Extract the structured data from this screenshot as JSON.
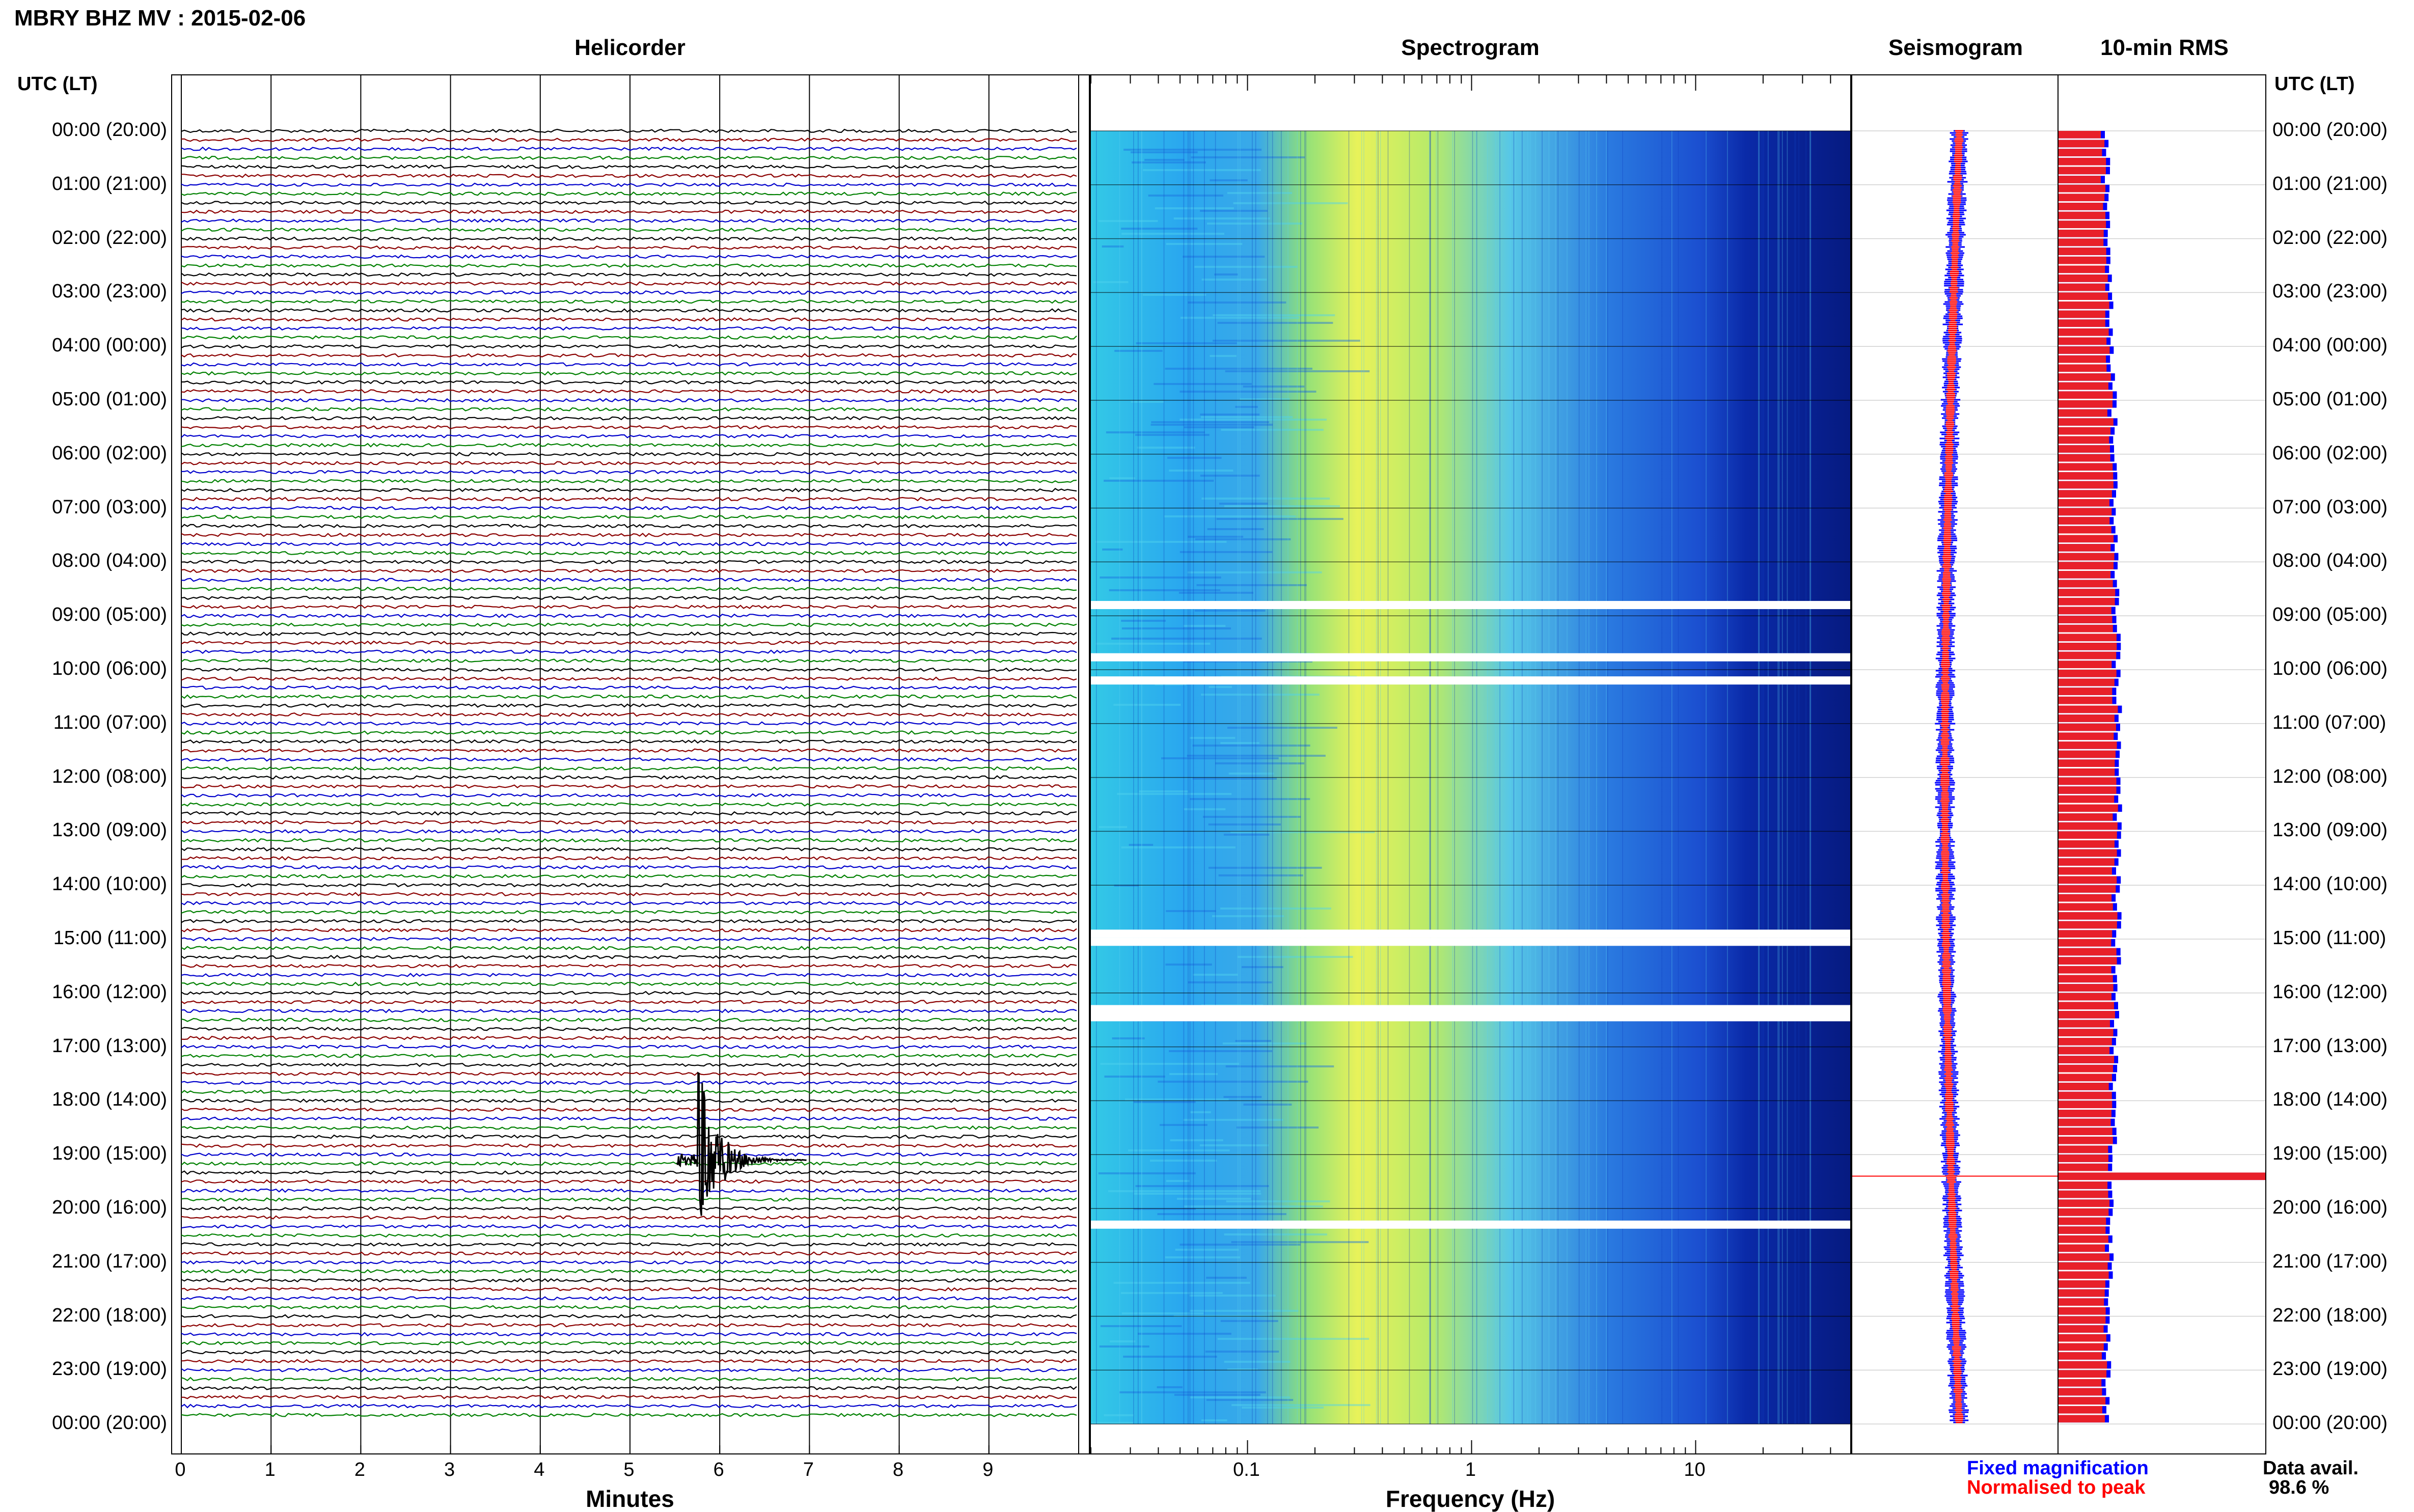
{
  "header": {
    "title": "MBRY BHZ MV : 2015-02-06",
    "utc_label": "UTC (LT)"
  },
  "panels": {
    "helicorder": "Helicorder",
    "spectrogram": "Spectrogram",
    "seismogram": "Seismogram",
    "rms": "10-min RMS"
  },
  "axes": {
    "helicorder_x_title": "Minutes",
    "spectrogram_x_title": "Frequency (Hz)"
  },
  "legend": {
    "fixed": "Fixed magnification",
    "normalised": "Normalised to peak",
    "data_avail_label": "Data avail.",
    "data_avail_value": "98.6 %"
  },
  "colors": {
    "trace_cycle": [
      "#000000",
      "#8b0000",
      "#0000cc",
      "#008000"
    ],
    "fixed": "#0000ff",
    "normalised": "#ff0000",
    "rms_bar": "#e8202a"
  },
  "chart_data": [
    {
      "type": "line",
      "name": "helicorder",
      "x_range": [
        0,
        10
      ],
      "x_ticks": [
        0,
        1,
        2,
        3,
        4,
        5,
        6,
        7,
        8,
        9
      ],
      "x_tick_labels": [
        "0",
        "1",
        "2",
        "3",
        "4",
        "5",
        "6",
        "7",
        "8",
        "9"
      ],
      "lines_per_hour": 6,
      "hours": 24,
      "event": {
        "hour": 19.1,
        "minute": 5.75
      }
    },
    {
      "type": "heatmap",
      "name": "spectrogram",
      "scale": "log",
      "x_range": [
        0.02,
        50
      ],
      "x_tick_labels": [
        "0.1",
        "1",
        "10"
      ],
      "x_tick_values": [
        0.1,
        1,
        10
      ],
      "gaps_utc_hour": [
        8.8,
        9.77,
        10.2,
        14.9,
        15.05,
        16.3,
        16.45,
        20.3
      ]
    },
    {
      "type": "line",
      "name": "seismogram",
      "series": [
        {
          "name": "Fixed magnification",
          "color": "#0000ff"
        },
        {
          "name": "Normalised to peak",
          "color": "#ff0000"
        }
      ]
    },
    {
      "type": "bar",
      "name": "10-min RMS",
      "series": [
        {
          "name": "Fixed magnification",
          "color": "#0000ff"
        },
        {
          "name": "Normalised to peak",
          "color": "#ff0000"
        }
      ],
      "peak_utc_hour": 19.4
    }
  ],
  "time_labels": [
    {
      "utc": "00:00 (20:00)",
      "h": 0
    },
    {
      "utc": "01:00 (21:00)",
      "h": 1
    },
    {
      "utc": "02:00 (22:00)",
      "h": 2
    },
    {
      "utc": "03:00 (23:00)",
      "h": 3
    },
    {
      "utc": "04:00 (00:00)",
      "h": 4
    },
    {
      "utc": "05:00 (01:00)",
      "h": 5
    },
    {
      "utc": "06:00 (02:00)",
      "h": 6
    },
    {
      "utc": "07:00 (03:00)",
      "h": 7
    },
    {
      "utc": "08:00 (04:00)",
      "h": 8
    },
    {
      "utc": "09:00 (05:00)",
      "h": 9
    },
    {
      "utc": "10:00 (06:00)",
      "h": 10
    },
    {
      "utc": "11:00 (07:00)",
      "h": 11
    },
    {
      "utc": "12:00 (08:00)",
      "h": 12
    },
    {
      "utc": "13:00 (09:00)",
      "h": 13
    },
    {
      "utc": "14:00 (10:00)",
      "h": 14
    },
    {
      "utc": "15:00 (11:00)",
      "h": 15
    },
    {
      "utc": "16:00 (12:00)",
      "h": 16
    },
    {
      "utc": "17:00 (13:00)",
      "h": 17
    },
    {
      "utc": "18:00 (14:00)",
      "h": 18
    },
    {
      "utc": "19:00 (15:00)",
      "h": 19
    },
    {
      "utc": "20:00 (16:00)",
      "h": 20
    },
    {
      "utc": "21:00 (17:00)",
      "h": 21
    },
    {
      "utc": "22:00 (18:00)",
      "h": 22
    },
    {
      "utc": "23:00 (19:00)",
      "h": 23
    },
    {
      "utc": "00:00 (20:00)",
      "h": 24
    }
  ]
}
